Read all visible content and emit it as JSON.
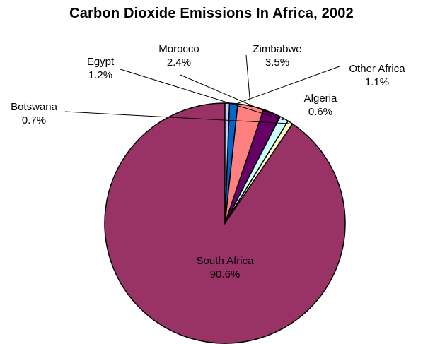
{
  "chart_data": {
    "type": "pie",
    "title": "Carbon Dioxide Emissions In Africa, 2002",
    "slices": [
      {
        "name": "South Africa",
        "value": 90.6,
        "label": "90.6%",
        "color": "#993366"
      },
      {
        "name": "Botswana",
        "value": 0.7,
        "label": "0.7%",
        "color": "#ffffcc"
      },
      {
        "name": "Egypt",
        "value": 1.2,
        "label": "1.2%",
        "color": "#ccffff"
      },
      {
        "name": "Morocco",
        "value": 2.4,
        "label": "2.4%",
        "color": "#660066"
      },
      {
        "name": "Zimbabwe",
        "value": 3.5,
        "label": "3.5%",
        "color": "#ff8080"
      },
      {
        "name": "Other Africa",
        "value": 1.1,
        "label": "1.1%",
        "color": "#0066cc"
      },
      {
        "name": "Algeria",
        "value": 0.6,
        "label": "0.6%",
        "color": "#ccccff"
      }
    ],
    "start_angle_deg": 0,
    "direction": "counterclockwise",
    "legend": "none"
  }
}
